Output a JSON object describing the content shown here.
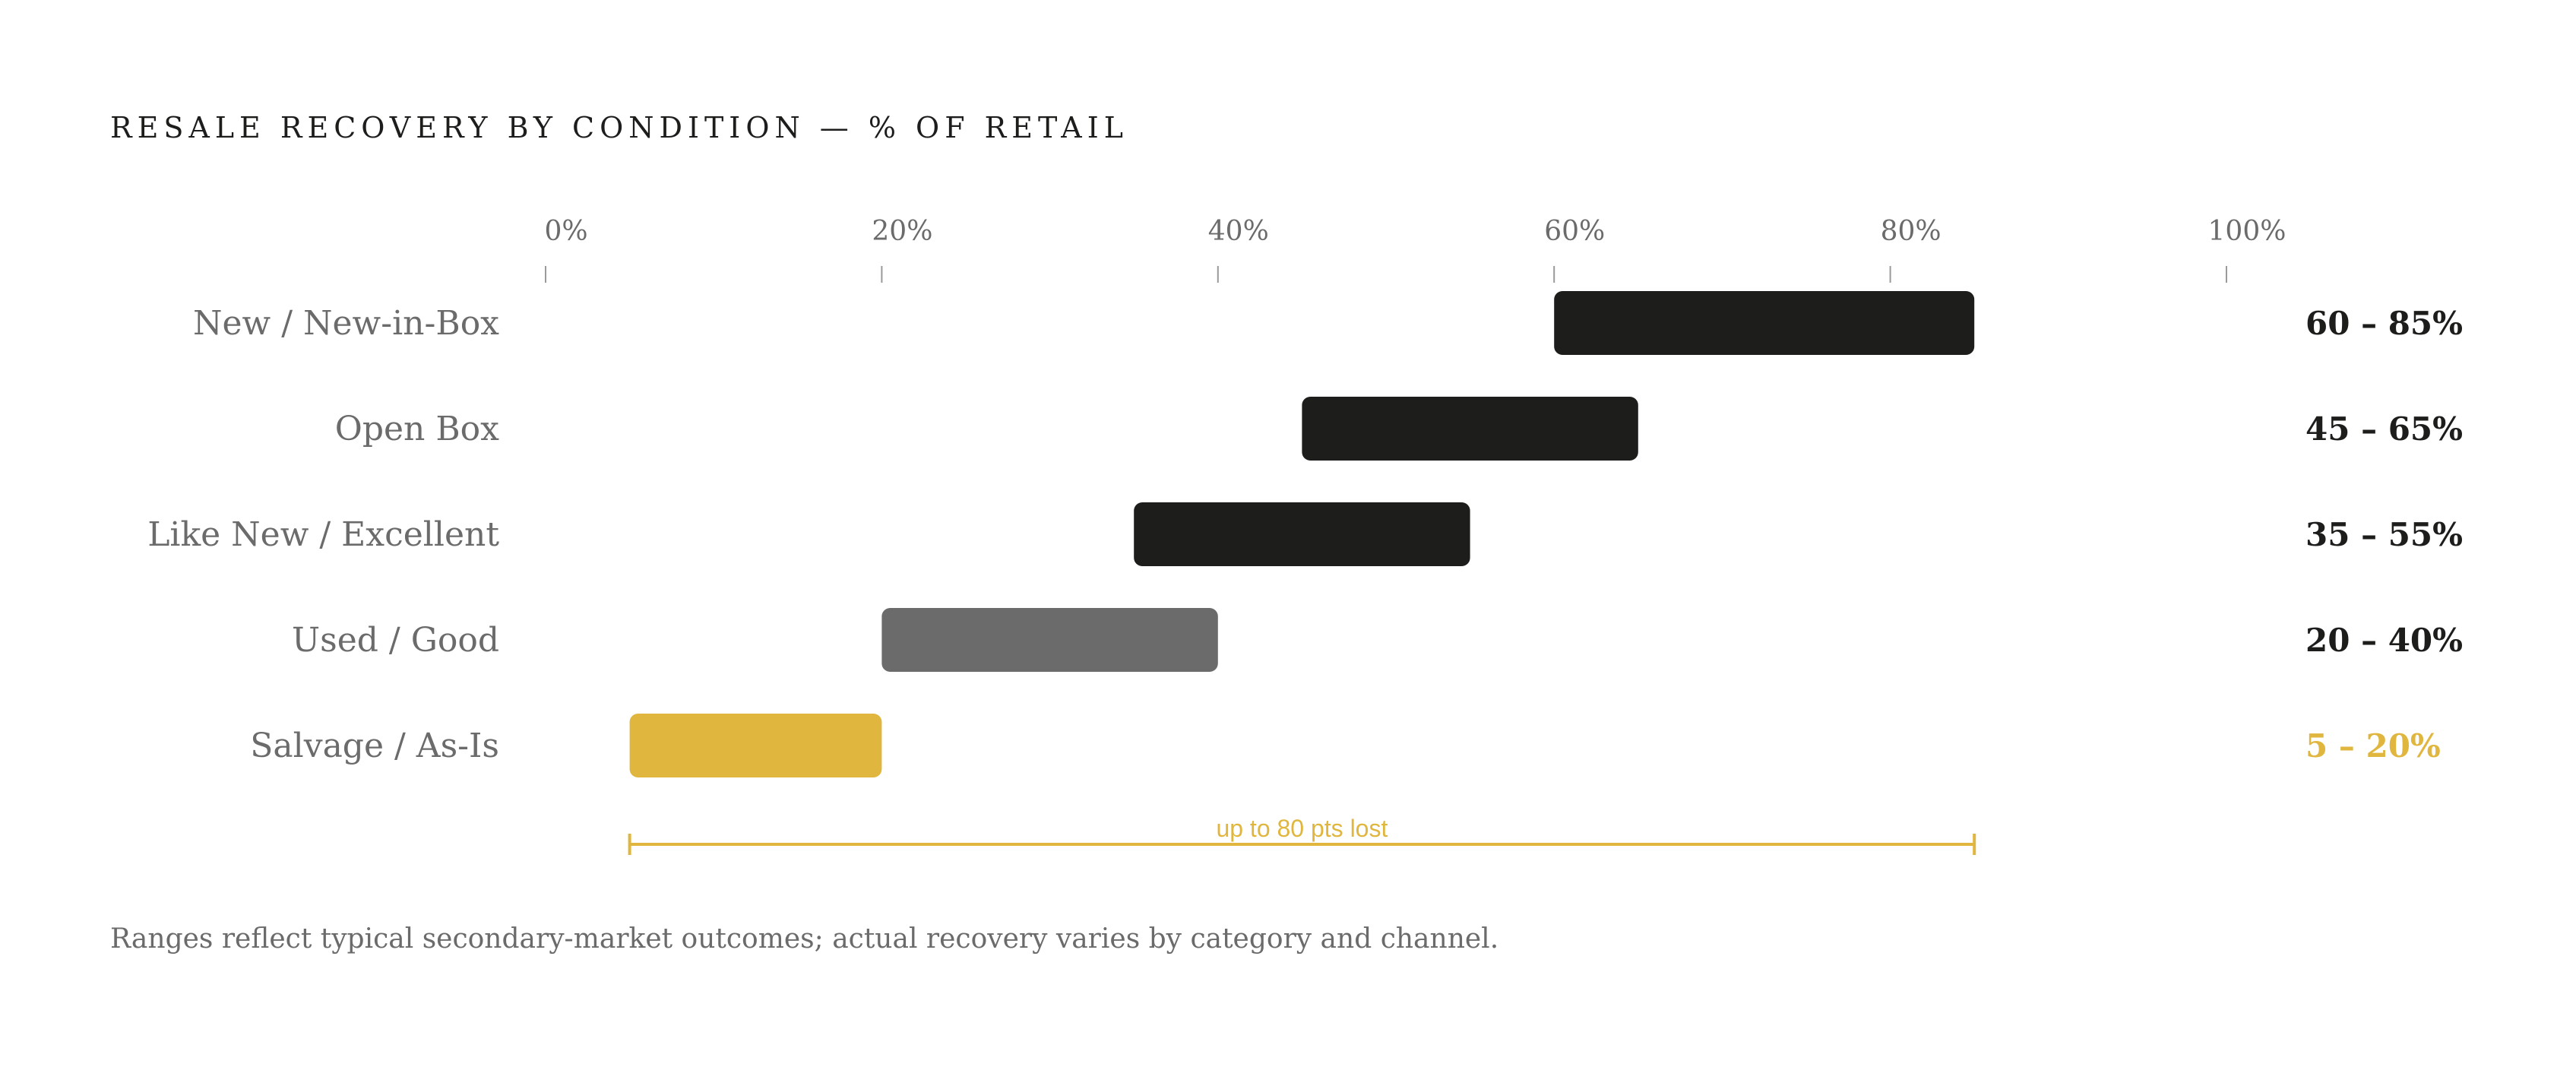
{
  "chart_data": {
    "type": "bar",
    "orientation": "horizontal-range",
    "title": "RESALE RECOVERY BY CONDITION — % OF RETAIL",
    "xlim": [
      0,
      100
    ],
    "ticks": [
      0,
      20,
      40,
      60,
      80,
      100
    ],
    "tick_labels": [
      "0%",
      "20%",
      "40%",
      "60%",
      "80%",
      "100%"
    ],
    "grid": false,
    "categories": [
      "New / New-in-Box",
      "Open Box",
      "Like New / Excellent",
      "Used / Good",
      "Salvage / As-Is"
    ],
    "ranges": [
      [
        60,
        85
      ],
      [
        45,
        65
      ],
      [
        35,
        55
      ],
      [
        20,
        40
      ],
      [
        5,
        20
      ]
    ],
    "range_labels": [
      "60 – 85%",
      "45 – 65%",
      "35 – 55%",
      "20 – 40%",
      "5 – 20%"
    ],
    "bar_colors": [
      "#1d1d1b",
      "#1d1d1b",
      "#1d1d1b",
      "#6b6b6b",
      "#e0b63e"
    ],
    "label_colors": [
      "#1d1d1b",
      "#1d1d1b",
      "#1d1d1b",
      "#1d1d1b",
      "#e0b63e"
    ],
    "annotation": {
      "text": "up to 80 pts lost",
      "from": 5,
      "to": 85,
      "color": "#e0b63e"
    },
    "footnote": "Ranges reflect typical secondary-market outcomes; actual recovery varies by category and channel."
  }
}
